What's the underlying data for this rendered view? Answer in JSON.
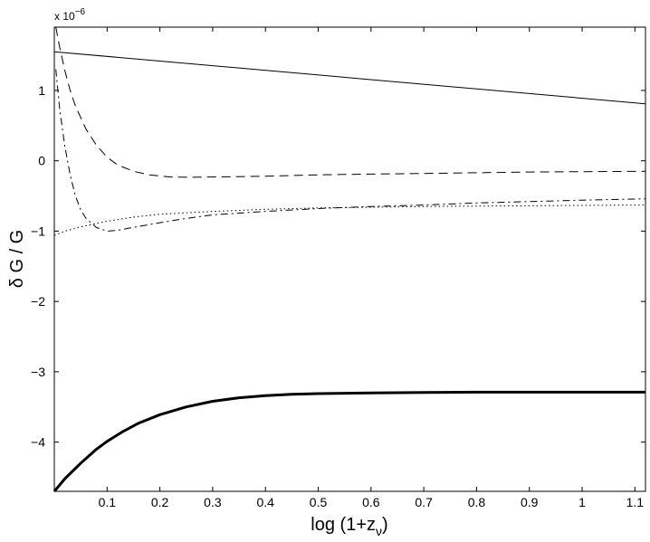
{
  "chart_data": {
    "type": "line",
    "title": "",
    "xlabel_main": "log (1+z",
    "xlabel_sub": "ν",
    "xlabel_close": ")",
    "ylabel": "δ G / G",
    "y_multiplier_base": "x 10",
    "y_multiplier_exp": "−6",
    "xlim": [
      0,
      1.12
    ],
    "ylim": [
      -4.7,
      1.9
    ],
    "x_ticks": [
      {
        "v": 0.1,
        "label": "0.1"
      },
      {
        "v": 0.2,
        "label": "0.2"
      },
      {
        "v": 0.3,
        "label": "0.3"
      },
      {
        "v": 0.4,
        "label": "0.4"
      },
      {
        "v": 0.5,
        "label": "0.5"
      },
      {
        "v": 0.6,
        "label": "0.6"
      },
      {
        "v": 0.7,
        "label": "0.7"
      },
      {
        "v": 0.8,
        "label": "0.8"
      },
      {
        "v": 0.9,
        "label": "0.9"
      },
      {
        "v": 1.0,
        "label": "1"
      },
      {
        "v": 1.1,
        "label": "1.1"
      }
    ],
    "y_ticks": [
      {
        "v": 1,
        "label": "1"
      },
      {
        "v": 0,
        "label": "0"
      },
      {
        "v": -1,
        "label": "−1"
      },
      {
        "v": -2,
        "label": "−2"
      },
      {
        "v": -3,
        "label": "−3"
      },
      {
        "v": -4,
        "label": "−4"
      }
    ],
    "grid": false,
    "series": [
      {
        "style": "solid",
        "x": [
          0,
          1.12
        ],
        "y": [
          1.55,
          0.81
        ]
      },
      {
        "style": "dashed",
        "x": [
          0.003,
          0.01,
          0.02,
          0.03,
          0.04,
          0.06,
          0.08,
          0.1,
          0.12,
          0.15,
          0.18,
          0.22,
          0.26,
          0.3,
          0.4,
          0.5,
          0.6,
          0.7,
          0.8,
          0.9,
          1.0,
          1.12
        ],
        "y": [
          1.9,
          1.62,
          1.28,
          1.0,
          0.78,
          0.45,
          0.22,
          0.05,
          -0.06,
          -0.15,
          -0.2,
          -0.23,
          -0.235,
          -0.23,
          -0.22,
          -0.2,
          -0.19,
          -0.18,
          -0.17,
          -0.16,
          -0.155,
          -0.15
        ]
      },
      {
        "style": "dashdot",
        "x": [
          0.003,
          0.01,
          0.02,
          0.03,
          0.04,
          0.05,
          0.06,
          0.08,
          0.1,
          0.12,
          0.14,
          0.17,
          0.2,
          0.25,
          0.3,
          0.4,
          0.5,
          0.6,
          0.7,
          0.8,
          0.9,
          1.0,
          1.12
        ],
        "y": [
          1.3,
          0.75,
          0.2,
          -0.2,
          -0.5,
          -0.7,
          -0.82,
          -0.95,
          -1.0,
          -0.99,
          -0.96,
          -0.92,
          -0.88,
          -0.82,
          -0.77,
          -0.72,
          -0.68,
          -0.65,
          -0.63,
          -0.6,
          -0.58,
          -0.56,
          -0.54
        ]
      },
      {
        "style": "dotted",
        "x": [
          0,
          0.02,
          0.05,
          0.1,
          0.15,
          0.2,
          0.3,
          0.4,
          0.5,
          0.6,
          0.7,
          0.8,
          0.9,
          1.0,
          1.12
        ],
        "y": [
          -1.06,
          -1.0,
          -0.94,
          -0.86,
          -0.8,
          -0.76,
          -0.72,
          -0.69,
          -0.67,
          -0.66,
          -0.65,
          -0.645,
          -0.64,
          -0.635,
          -0.63
        ]
      },
      {
        "style": "thick",
        "x": [
          0,
          0.02,
          0.05,
          0.08,
          0.1,
          0.13,
          0.16,
          0.2,
          0.25,
          0.3,
          0.35,
          0.4,
          0.45,
          0.5,
          0.6,
          0.7,
          0.8,
          0.9,
          1.0,
          1.12
        ],
        "y": [
          -4.7,
          -4.52,
          -4.3,
          -4.1,
          -3.99,
          -3.85,
          -3.73,
          -3.61,
          -3.5,
          -3.42,
          -3.37,
          -3.34,
          -3.32,
          -3.31,
          -3.3,
          -3.295,
          -3.29,
          -3.29,
          -3.29,
          -3.29
        ]
      }
    ]
  }
}
